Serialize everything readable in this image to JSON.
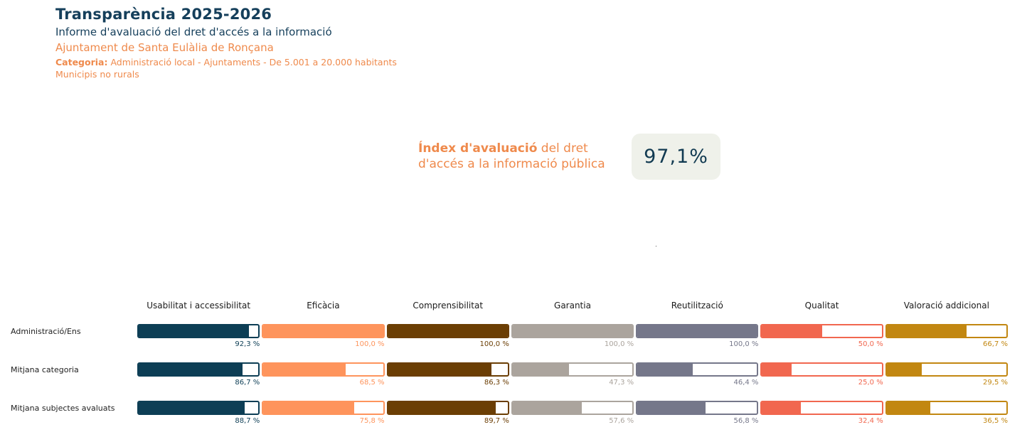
{
  "header": {
    "title": "Transparència 2025-2026",
    "subtitle": "Informe d'avaluació del dret d'accés a la informació",
    "entity": "Ajuntament de Santa Eulàlia de Ronçana",
    "category_label": "Categoria:",
    "category_value": " Administració local - Ajuntaments - De 5.001 a 20.000 habitants",
    "subcategory": "Municipis no rurals"
  },
  "index": {
    "label_bold": "Índex d'avaluació",
    "label_rest": " del dret d'accés a la informació pública",
    "value": "97,1%"
  },
  "stray_dot": ".",
  "colors": {
    "title_navy": "#153f5b",
    "accent_orange": "#ef8a4c",
    "badge_bg": "#eff1ea",
    "badge_text": "#113a51"
  },
  "chart_data": {
    "type": "bar",
    "categories": [
      "Usabilitat i accessibilitat",
      "Eficàcia",
      "Comprensibilitat",
      "Garantia",
      "Reutilització",
      "Qualitat",
      "Valoració addicional"
    ],
    "colors": [
      "#0d3e55",
      "#fe945c",
      "#6b3e04",
      "#aba49d",
      "#75778a",
      "#f1674f",
      "#c28711"
    ],
    "value_range": [
      0,
      100
    ],
    "series": [
      {
        "name": "Administració/Ens",
        "values": [
          92.3,
          100.0,
          100.0,
          100.0,
          100.0,
          50.0,
          66.7
        ],
        "labels": [
          "92,3 %",
          "100,0 %",
          "100,0 %",
          "100,0 %",
          "100,0 %",
          "50,0 %",
          "66,7 %"
        ]
      },
      {
        "name": "Mitjana categoria",
        "values": [
          86.7,
          68.5,
          86.3,
          47.3,
          46.4,
          25.0,
          29.5
        ],
        "labels": [
          "86,7 %",
          "68,5 %",
          "86,3 %",
          "47,3 %",
          "46,4 %",
          "25,0 %",
          "29,5 %"
        ]
      },
      {
        "name": "Mitjana subjectes avaluats",
        "values": [
          88.7,
          75.8,
          89.7,
          57.6,
          56.8,
          32.4,
          36.5
        ],
        "labels": [
          "88,7 %",
          "75,8 %",
          "89,7 %",
          "57,6 %",
          "56,8 %",
          "32,4 %",
          "36,5 %"
        ]
      }
    ]
  }
}
